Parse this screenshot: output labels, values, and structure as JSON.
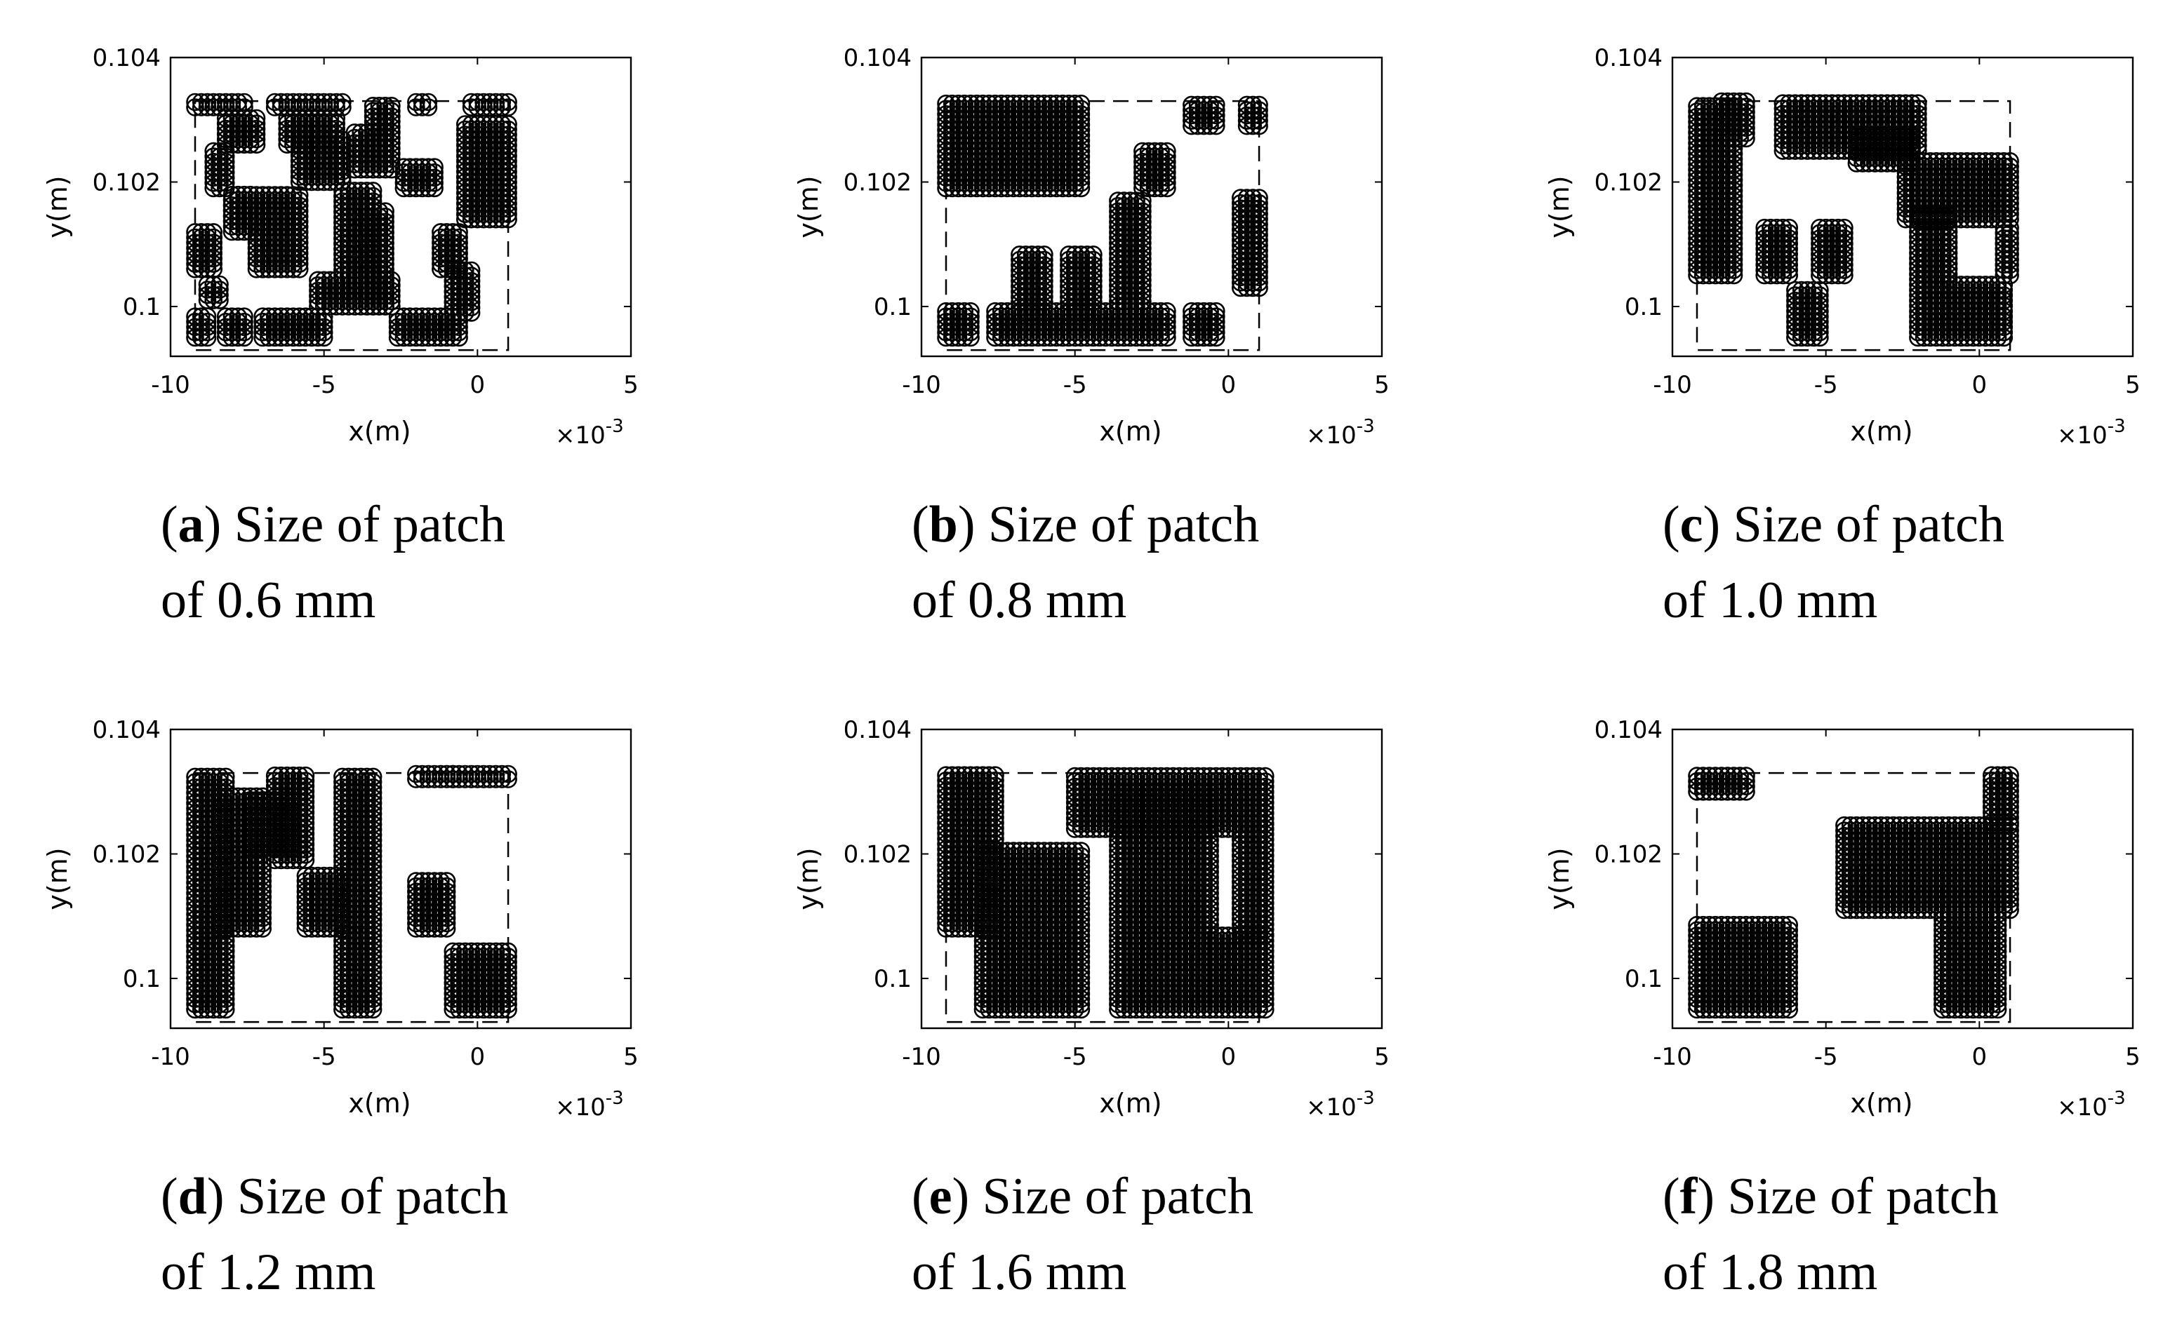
{
  "chart_data": [
    {
      "type": "scatter",
      "caption_label": "a",
      "caption_line1": "Size of patch",
      "caption_line2": "of 0.6 mm",
      "xlabel": "x(m)",
      "ylabel": "y(m)",
      "x_multiplier": "10",
      "x_exponent": "-3",
      "xlim": [
        -10,
        5
      ],
      "ylim": [
        0.0992,
        0.104
      ],
      "xticks": [
        "-10",
        "-5",
        "0",
        "5"
      ],
      "yticks": [
        "0.1",
        "0.102",
        "0.104"
      ],
      "boundary": {
        "x": [
          -9.2,
          1.0
        ],
        "y": [
          0.0993,
          0.1033
        ]
      },
      "blocks": [
        {
          "x": [
            -9.2,
            -7.6
          ],
          "y": [
            0.1032,
            0.1033
          ]
        },
        {
          "x": [
            -8.2,
            -7.2
          ],
          "y": [
            0.1026,
            0.1031
          ]
        },
        {
          "x": [
            -6.6,
            -4.4
          ],
          "y": [
            0.1032,
            0.1033
          ]
        },
        {
          "x": [
            -6.2,
            -4.6
          ],
          "y": [
            0.1026,
            0.1031
          ]
        },
        {
          "x": [
            -3.4,
            -2.8
          ],
          "y": [
            0.1028,
            0.1033
          ]
        },
        {
          "x": [
            -2.0,
            -1.6
          ],
          "y": [
            0.1032,
            0.1033
          ]
        },
        {
          "x": [
            -0.2,
            1.0
          ],
          "y": [
            0.1032,
            0.1033
          ]
        },
        {
          "x": [
            -8.6,
            -8.2
          ],
          "y": [
            0.1019,
            0.1025
          ]
        },
        {
          "x": [
            -5.8,
            -4.4
          ],
          "y": [
            0.102,
            0.1027
          ]
        },
        {
          "x": [
            -4.0,
            -2.8
          ],
          "y": [
            0.1022,
            0.1028
          ]
        },
        {
          "x": [
            -2.4,
            -1.4
          ],
          "y": [
            0.1019,
            0.1023
          ]
        },
        {
          "x": [
            -0.4,
            1.0
          ],
          "y": [
            0.1014,
            0.103
          ]
        },
        {
          "x": [
            -8.0,
            -7.4
          ],
          "y": [
            0.1012,
            0.1018
          ]
        },
        {
          "x": [
            -7.2,
            -5.8
          ],
          "y": [
            0.1006,
            0.1018
          ]
        },
        {
          "x": [
            -4.4,
            -3.4
          ],
          "y": [
            0.1005,
            0.1019
          ]
        },
        {
          "x": [
            -3.6,
            -3.0
          ],
          "y": [
            0.1,
            0.1016
          ]
        },
        {
          "x": [
            -1.2,
            -0.6
          ],
          "y": [
            0.1006,
            0.1012
          ]
        },
        {
          "x": [
            -9.2,
            -8.6
          ],
          "y": [
            0.1006,
            0.1012
          ]
        },
        {
          "x": [
            -8.8,
            -8.4
          ],
          "y": [
            0.1001,
            0.1004
          ]
        },
        {
          "x": [
            -5.2,
            -2.8
          ],
          "y": [
            0.1,
            0.1005
          ]
        },
        {
          "x": [
            -9.2,
            -8.8
          ],
          "y": [
            0.0995,
            0.0999
          ]
        },
        {
          "x": [
            -8.2,
            -7.6
          ],
          "y": [
            0.0995,
            0.0999
          ]
        },
        {
          "x": [
            -7.0,
            -5.0
          ],
          "y": [
            0.0995,
            0.0999
          ]
        },
        {
          "x": [
            -2.6,
            -0.6
          ],
          "y": [
            0.0995,
            0.0999
          ]
        },
        {
          "x": [
            -0.8,
            -0.2
          ],
          "y": [
            0.0999,
            0.1006
          ]
        }
      ]
    },
    {
      "type": "scatter",
      "caption_label": "b",
      "caption_line1": "Size of patch",
      "caption_line2": "of 0.8 mm",
      "xlabel": "x(m)",
      "ylabel": "y(m)",
      "x_multiplier": "10",
      "x_exponent": "-3",
      "xlim": [
        -10,
        5
      ],
      "ylim": [
        0.0992,
        0.104
      ],
      "xticks": [
        "-10",
        "-5",
        "0",
        "5"
      ],
      "yticks": [
        "0.1",
        "0.102",
        "0.104"
      ],
      "boundary": {
        "x": [
          -9.2,
          1.0
        ],
        "y": [
          0.0993,
          0.1033
        ]
      },
      "blocks": [
        {
          "x": [
            -9.2,
            -4.8
          ],
          "y": [
            0.1019,
            0.1033
          ]
        },
        {
          "x": [
            -1.2,
            -0.4
          ],
          "y": [
            0.1029,
            0.1033
          ]
        },
        {
          "x": [
            0.6,
            1.0
          ],
          "y": [
            0.1029,
            0.1033
          ]
        },
        {
          "x": [
            -2.8,
            -2.0
          ],
          "y": [
            0.1019,
            0.1025
          ]
        },
        {
          "x": [
            -3.6,
            -2.8
          ],
          "y": [
            0.1,
            0.1017
          ]
        },
        {
          "x": [
            0.4,
            1.0
          ],
          "y": [
            0.1003,
            0.1018
          ]
        },
        {
          "x": [
            -6.8,
            -6.0
          ],
          "y": [
            0.0999,
            0.1009
          ]
        },
        {
          "x": [
            -5.2,
            -4.4
          ],
          "y": [
            0.0999,
            0.1009
          ]
        },
        {
          "x": [
            -7.6,
            -2.0
          ],
          "y": [
            0.0995,
            0.1
          ]
        },
        {
          "x": [
            -9.2,
            -8.4
          ],
          "y": [
            0.0995,
            0.1
          ]
        },
        {
          "x": [
            -1.2,
            -0.4
          ],
          "y": [
            0.0995,
            0.1
          ]
        }
      ]
    },
    {
      "type": "scatter",
      "caption_label": "c",
      "caption_line1": "Size of patch",
      "caption_line2": "of 1.0 mm",
      "xlabel": "x(m)",
      "ylabel": "y(m)",
      "x_multiplier": "10",
      "x_exponent": "-3",
      "xlim": [
        -10,
        5
      ],
      "ylim": [
        0.0992,
        0.104
      ],
      "xticks": [
        "-10",
        "-5",
        "0",
        "5"
      ],
      "yticks": [
        "0.1",
        "0.102",
        "0.104"
      ],
      "boundary": {
        "x": [
          -9.2,
          1.0
        ],
        "y": [
          0.0993,
          0.1033
        ]
      },
      "blocks": [
        {
          "x": [
            -9.2,
            -8.0
          ],
          "y": [
            0.1005,
            0.1033
          ]
        },
        {
          "x": [
            -8.4,
            -7.6
          ],
          "y": [
            0.1027,
            0.1033
          ]
        },
        {
          "x": [
            -6.4,
            -2.0
          ],
          "y": [
            0.1025,
            0.1033
          ]
        },
        {
          "x": [
            -4.0,
            -2.2
          ],
          "y": [
            0.1023,
            0.1028
          ]
        },
        {
          "x": [
            -2.4,
            1.0
          ],
          "y": [
            0.1014,
            0.1024
          ]
        },
        {
          "x": [
            -7.0,
            -6.2
          ],
          "y": [
            0.1005,
            0.1013
          ]
        },
        {
          "x": [
            -5.2,
            -4.4
          ],
          "y": [
            0.1005,
            0.1013
          ]
        },
        {
          "x": [
            -2.0,
            -1.0
          ],
          "y": [
            0.0995,
            0.1015
          ]
        },
        {
          "x": [
            -0.8,
            0.8
          ],
          "y": [
            0.0995,
            0.1004
          ]
        },
        {
          "x": [
            -6.0,
            -5.2
          ],
          "y": [
            0.0995,
            0.1003
          ]
        },
        {
          "x": [
            0.8,
            1.0
          ],
          "y": [
            0.1005,
            0.1013
          ]
        }
      ]
    },
    {
      "type": "scatter",
      "caption_label": "d",
      "caption_line1": "Size of patch",
      "caption_line2": "of 1.2 mm",
      "xlabel": "x(m)",
      "ylabel": "y(m)",
      "x_multiplier": "10",
      "x_exponent": "-3",
      "xlim": [
        -10,
        5
      ],
      "ylim": [
        0.0992,
        0.104
      ],
      "xticks": [
        "-10",
        "-5",
        "0",
        "5"
      ],
      "yticks": [
        "0.1",
        "0.102",
        "0.104"
      ],
      "boundary": {
        "x": [
          -9.2,
          1.0
        ],
        "y": [
          0.0993,
          0.1033
        ]
      },
      "blocks": [
        {
          "x": [
            -9.2,
            -8.2
          ],
          "y": [
            0.0995,
            0.1033
          ]
        },
        {
          "x": [
            -8.4,
            -7.0
          ],
          "y": [
            0.1008,
            0.103
          ]
        },
        {
          "x": [
            -6.6,
            -5.6
          ],
          "y": [
            0.1019,
            0.1033
          ]
        },
        {
          "x": [
            -7.4,
            -6.0
          ],
          "y": [
            0.1021,
            0.1029
          ]
        },
        {
          "x": [
            -5.6,
            -4.4
          ],
          "y": [
            0.1008,
            0.1017
          ]
        },
        {
          "x": [
            -4.4,
            -3.4
          ],
          "y": [
            0.0995,
            0.1033
          ]
        },
        {
          "x": [
            -2.0,
            -0.8
          ],
          "y": [
            0.1032,
            0.1033
          ]
        },
        {
          "x": [
            -0.8,
            1.0
          ],
          "y": [
            0.1032,
            0.1033
          ]
        },
        {
          "x": [
            -2.0,
            -1.0
          ],
          "y": [
            0.1008,
            0.1016
          ]
        },
        {
          "x": [
            -0.8,
            1.0
          ],
          "y": [
            0.0995,
            0.1005
          ]
        }
      ]
    },
    {
      "type": "scatter",
      "caption_label": "e",
      "caption_line1": "Size of patch",
      "caption_line2": "of 1.6 mm",
      "xlabel": "x(m)",
      "ylabel": "y(m)",
      "x_multiplier": "10",
      "x_exponent": "-3",
      "xlim": [
        -10,
        5
      ],
      "ylim": [
        0.0992,
        0.104
      ],
      "xticks": [
        "-10",
        "-5",
        "0",
        "5"
      ],
      "yticks": [
        "0.1",
        "0.102",
        "0.104"
      ],
      "boundary": {
        "x": [
          -9.2,
          1.0
        ],
        "y": [
          0.0993,
          0.1033
        ]
      },
      "blocks": [
        {
          "x": [
            -9.2,
            -7.6
          ],
          "y": [
            0.1008,
            0.1033
          ]
        },
        {
          "x": [
            -8.0,
            -4.8
          ],
          "y": [
            0.0995,
            0.1021
          ]
        },
        {
          "x": [
            -5.0,
            1.2
          ],
          "y": [
            0.1024,
            0.1033
          ]
        },
        {
          "x": [
            -3.6,
            -0.6
          ],
          "y": [
            0.0995,
            0.103
          ]
        },
        {
          "x": [
            -0.6,
            1.2
          ],
          "y": [
            0.0995,
            0.1007
          ]
        },
        {
          "x": [
            0.4,
            1.2
          ],
          "y": [
            0.1007,
            0.1025
          ]
        }
      ]
    },
    {
      "type": "scatter",
      "caption_label": "f",
      "caption_line1": "Size of patch",
      "caption_line2": "of 1.8 mm",
      "xlabel": "x(m)",
      "ylabel": "y(m)",
      "x_multiplier": "10",
      "x_exponent": "-3",
      "xlim": [
        -10,
        5
      ],
      "ylim": [
        0.0992,
        0.104
      ],
      "xticks": [
        "-10",
        "-5",
        "0",
        "5"
      ],
      "yticks": [
        "0.1",
        "0.102",
        "0.104"
      ],
      "boundary": {
        "x": [
          -9.2,
          1.0
        ],
        "y": [
          0.0993,
          0.1033
        ]
      },
      "blocks": [
        {
          "x": [
            -9.2,
            -7.6
          ],
          "y": [
            0.103,
            0.1033
          ]
        },
        {
          "x": [
            0.4,
            1.0
          ],
          "y": [
            0.1025,
            0.1033
          ]
        },
        {
          "x": [
            -4.4,
            1.0
          ],
          "y": [
            0.1011,
            0.1025
          ]
        },
        {
          "x": [
            -1.2,
            0.6
          ],
          "y": [
            0.0995,
            0.1011
          ]
        },
        {
          "x": [
            -9.2,
            -6.2
          ],
          "y": [
            0.0995,
            0.1009
          ]
        }
      ]
    }
  ]
}
